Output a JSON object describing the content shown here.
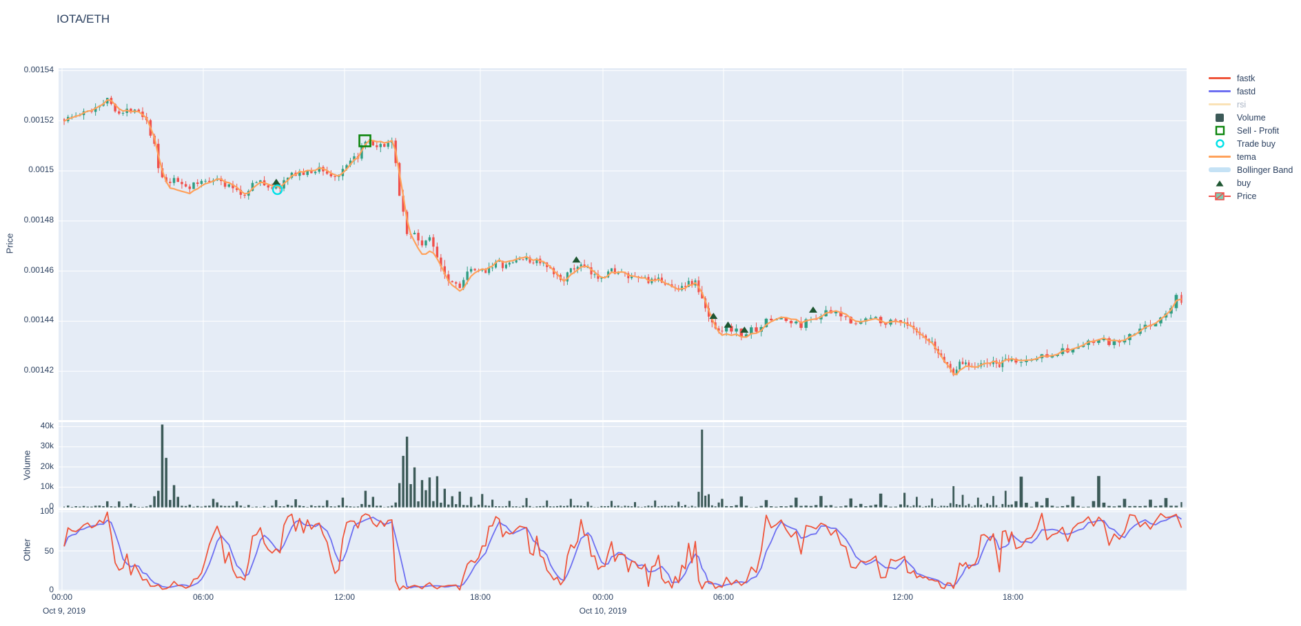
{
  "title": "IOTA/ETH",
  "colors": {
    "text": "#2a3f5f",
    "plot_bg": "#E5ECF6",
    "grid": "#ffffff",
    "fastk": "#EF553B",
    "fastd": "#6D6FF1",
    "rsi": "#FAE2B6",
    "tema": "#FFA15A",
    "bollinger": "#C5E2F5",
    "candle_up": "#2F9E83",
    "candle_down": "#F0504B",
    "volume_bar": "#3C5A58",
    "buy_marker": "#1E5631",
    "sell_profit": "#0C850C",
    "trade_buy": "#00E1E8"
  },
  "legend": {
    "items": [
      {
        "label": "fastk",
        "type": "line",
        "color": "#EF553B",
        "dimmed": false
      },
      {
        "label": "fastd",
        "type": "line",
        "color": "#6D6FF1",
        "dimmed": false
      },
      {
        "label": "rsi",
        "type": "line",
        "color": "#FAE2B6",
        "dimmed": true
      },
      {
        "label": "Volume",
        "type": "square-filled",
        "color": "#3C5A58",
        "dimmed": false
      },
      {
        "label": "Sell - Profit",
        "type": "square-open",
        "color": "#0C850C",
        "dimmed": false
      },
      {
        "label": "Trade buy",
        "type": "circle-open",
        "color": "#00E1E8",
        "dimmed": false
      },
      {
        "label": "tema",
        "type": "line",
        "color": "#FFA15A",
        "dimmed": false
      },
      {
        "label": "Bollinger Band",
        "type": "band",
        "color": "#C5E2F5",
        "dimmed": false
      },
      {
        "label": "buy",
        "type": "triangle",
        "color": "#1E5631",
        "dimmed": false
      },
      {
        "label": "Price",
        "type": "candle",
        "color": "#2F9E83",
        "dimmed": false
      }
    ]
  },
  "axes": {
    "price": {
      "title": "Price",
      "ticks": [
        "0.00154",
        "0.00152",
        "0.0015",
        "0.00148",
        "0.00146",
        "0.00144",
        "0.00142"
      ]
    },
    "volume": {
      "title": "Volume",
      "ticks": [
        "40k",
        "30k",
        "20k",
        "10k",
        "0"
      ]
    },
    "other": {
      "title": "Other",
      "ticks": [
        "100",
        "50",
        "0"
      ]
    },
    "x": {
      "ticks": [
        "00:00",
        "06:00",
        "12:00",
        "18:00",
        "00:00",
        "06:00",
        "12:00",
        "18:00"
      ],
      "date_labels": [
        "Oct 9, 2019",
        "Oct 10, 2019"
      ]
    }
  },
  "chart_data": {
    "type": "candlestick+indicators",
    "pair": "IOTA/ETH",
    "x_unit": "hours_since_2019-10-09T00:00",
    "x_tick_hours": [
      0,
      6,
      12,
      18,
      24,
      30,
      36,
      42
    ],
    "ylim_price": [
      0.0014005,
      0.001541
    ],
    "ylim_volume": [
      0,
      42700
    ],
    "ylim_other": [
      0,
      100
    ],
    "candle_period_hours": 0.1667,
    "price_anchors": [
      [
        0,
        0.0015205
      ],
      [
        0.4,
        0.0015215
      ],
      [
        0.8,
        0.0015225
      ],
      [
        1.2,
        0.001524
      ],
      [
        1.6,
        0.001527
      ],
      [
        1.9,
        0.0015285
      ],
      [
        2.2,
        0.001526
      ],
      [
        2.5,
        0.0015225
      ],
      [
        2.8,
        0.001524
      ],
      [
        3.1,
        0.0015255
      ],
      [
        3.4,
        0.001523
      ],
      [
        3.7,
        0.0015185
      ],
      [
        3.95,
        0.001508
      ],
      [
        4.15,
        0.001498
      ],
      [
        4.4,
        0.0014945
      ],
      [
        4.7,
        0.001496
      ],
      [
        5.0,
        0.0014955
      ],
      [
        5.4,
        0.0014935
      ],
      [
        5.8,
        0.001495
      ],
      [
        6.2,
        0.0014965
      ],
      [
        6.5,
        0.0014975
      ],
      [
        6.8,
        0.001495
      ],
      [
        7.1,
        0.0014935
      ],
      [
        7.4,
        0.001493
      ],
      [
        7.7,
        0.0014895
      ],
      [
        8.0,
        0.0014945
      ],
      [
        8.4,
        0.0014955
      ],
      [
        8.8,
        0.001494
      ],
      [
        9.1,
        0.0014925
      ],
      [
        9.4,
        0.0014955
      ],
      [
        9.7,
        0.0014975
      ],
      [
        10.0,
        0.0015
      ],
      [
        10.3,
        0.0014985
      ],
      [
        10.6,
        0.0014995
      ],
      [
        11.0,
        0.0015015
      ],
      [
        11.3,
        0.0014985
      ],
      [
        11.6,
        0.0014975
      ],
      [
        11.9,
        0.001499
      ],
      [
        12.2,
        0.0015025
      ],
      [
        12.5,
        0.001505
      ],
      [
        12.8,
        0.0015095
      ],
      [
        13.1,
        0.0015115
      ],
      [
        13.35,
        0.001508
      ],
      [
        13.6,
        0.0015095
      ],
      [
        13.9,
        0.0015115
      ],
      [
        14.1,
        0.00151
      ],
      [
        14.3,
        0.0015
      ],
      [
        14.5,
        0.001488
      ],
      [
        14.7,
        0.001478
      ],
      [
        14.85,
        0.001472
      ],
      [
        15.0,
        0.0014765
      ],
      [
        15.2,
        0.001473
      ],
      [
        15.45,
        0.0014705
      ],
      [
        15.7,
        0.0014735
      ],
      [
        15.95,
        0.001469
      ],
      [
        16.2,
        0.0014645
      ],
      [
        16.5,
        0.001458
      ],
      [
        16.8,
        0.0014555
      ],
      [
        17.1,
        0.0014545
      ],
      [
        17.4,
        0.0014585
      ],
      [
        17.7,
        0.0014605
      ],
      [
        18.0,
        0.001459
      ],
      [
        18.4,
        0.0014615
      ],
      [
        18.8,
        0.0014635
      ],
      [
        19.2,
        0.0014615
      ],
      [
        19.6,
        0.0014635
      ],
      [
        20.0,
        0.0014655
      ],
      [
        20.4,
        0.0014635
      ],
      [
        20.8,
        0.0014645
      ],
      [
        21.2,
        0.0014615
      ],
      [
        21.6,
        0.0014585
      ],
      [
        22.0,
        0.0014565
      ],
      [
        22.4,
        0.0014595
      ],
      [
        22.8,
        0.0014625
      ],
      [
        23.2,
        0.0014605
      ],
      [
        23.6,
        0.0014575
      ],
      [
        24.0,
        0.0014585
      ],
      [
        24.5,
        0.0014605
      ],
      [
        25.0,
        0.0014585
      ],
      [
        25.5,
        0.0014565
      ],
      [
        26.0,
        0.0014575
      ],
      [
        26.5,
        0.0014555
      ],
      [
        27.0,
        0.0014565
      ],
      [
        27.5,
        0.0014525
      ],
      [
        28.0,
        0.0014545
      ],
      [
        28.6,
        0.0014555
      ],
      [
        29.0,
        0.0014465
      ],
      [
        29.25,
        0.0014415
      ],
      [
        29.55,
        0.0014385
      ],
      [
        29.85,
        0.0014365
      ],
      [
        30.2,
        0.0014375
      ],
      [
        30.6,
        0.0014345
      ],
      [
        31.0,
        0.0014365
      ],
      [
        31.4,
        0.0014395
      ],
      [
        31.8,
        0.0014415
      ],
      [
        32.2,
        0.0014395
      ],
      [
        32.6,
        0.0014385
      ],
      [
        33.0,
        0.0014415
      ],
      [
        33.5,
        0.0014435
      ],
      [
        34.0,
        0.0014415
      ],
      [
        34.5,
        0.0014395
      ],
      [
        35.0,
        0.0014415
      ],
      [
        35.5,
        0.0014395
      ],
      [
        36.0,
        0.0014405
      ],
      [
        36.4,
        0.0014375
      ],
      [
        36.8,
        0.0014345
      ],
      [
        37.2,
        0.0014325
      ],
      [
        37.6,
        0.0014305
      ],
      [
        38.0,
        0.0014265
      ],
      [
        38.4,
        0.0014235
      ],
      [
        38.7,
        0.0014185
      ],
      [
        39.0,
        0.0014225
      ],
      [
        39.4,
        0.0014235
      ],
      [
        39.8,
        0.0014225
      ],
      [
        40.3,
        0.0014225
      ],
      [
        40.8,
        0.0014235
      ],
      [
        41.3,
        0.0014225
      ],
      [
        41.8,
        0.0014245
      ],
      [
        42.3,
        0.0014235
      ],
      [
        42.8,
        0.0014255
      ],
      [
        43.3,
        0.0014275
      ],
      [
        43.8,
        0.0014285
      ],
      [
        44.3,
        0.0014305
      ],
      [
        44.8,
        0.0014325
      ],
      [
        45.2,
        0.0014305
      ],
      [
        45.6,
        0.0014325
      ],
      [
        46.0,
        0.0014355
      ],
      [
        46.4,
        0.0014385
      ],
      [
        46.8,
        0.0014415
      ],
      [
        47.1,
        0.0014445
      ],
      [
        47.3,
        0.0014515
      ],
      [
        47.45,
        0.0014465
      ]
    ],
    "volume_spikes": [
      [
        2.0,
        3000
      ],
      [
        3.9,
        5500
      ],
      [
        4.2,
        41000
      ],
      [
        4.45,
        24500
      ],
      [
        4.7,
        11000
      ],
      [
        5.0,
        5200
      ],
      [
        6.5,
        4200
      ],
      [
        7.5,
        3000
      ],
      [
        9.1,
        3600
      ],
      [
        10.0,
        4000
      ],
      [
        11.2,
        3500
      ],
      [
        12.0,
        4800
      ],
      [
        12.9,
        8200
      ],
      [
        13.2,
        5200
      ],
      [
        14.35,
        12000
      ],
      [
        14.55,
        25500
      ],
      [
        14.75,
        35000
      ],
      [
        14.95,
        11500
      ],
      [
        15.15,
        19800
      ],
      [
        15.35,
        13500
      ],
      [
        15.6,
        8500
      ],
      [
        15.8,
        14800
      ],
      [
        16.1,
        15400
      ],
      [
        16.4,
        9200
      ],
      [
        16.7,
        5500
      ],
      [
        17.1,
        7800
      ],
      [
        17.6,
        5200
      ],
      [
        18.1,
        6600
      ],
      [
        18.6,
        3800
      ],
      [
        19.4,
        3200
      ],
      [
        20.3,
        4600
      ],
      [
        21.2,
        3400
      ],
      [
        22.4,
        4200
      ],
      [
        23.3,
        2800
      ],
      [
        24.5,
        3200
      ],
      [
        25.6,
        2600
      ],
      [
        26.6,
        3400
      ],
      [
        27.7,
        2800
      ],
      [
        29.0,
        38500
      ],
      [
        29.3,
        6500
      ],
      [
        30.0,
        4200
      ],
      [
        30.6,
        5400
      ],
      [
        31.5,
        3600
      ],
      [
        32.4,
        4800
      ],
      [
        33.3,
        5600
      ],
      [
        34.2,
        4400
      ],
      [
        35.2,
        6800
      ],
      [
        36.1,
        7200
      ],
      [
        36.8,
        5200
      ],
      [
        37.6,
        4400
      ],
      [
        38.7,
        10500
      ],
      [
        39.2,
        6200
      ],
      [
        40.1,
        4800
      ],
      [
        40.9,
        5600
      ],
      [
        41.6,
        8200
      ],
      [
        42.3,
        15200
      ],
      [
        43.1,
        4600
      ],
      [
        43.9,
        5400
      ],
      [
        44.8,
        15500
      ],
      [
        45.6,
        4200
      ],
      [
        46.4,
        3800
      ],
      [
        47.0,
        4600
      ],
      [
        47.4,
        2600
      ]
    ],
    "markers": {
      "trade_buy": [
        [
          9.15,
          0.0014925
        ]
      ],
      "sell_profit": [
        [
          12.9,
          0.001512
        ]
      ],
      "buy": [
        [
          9.1,
          0.0014955
        ],
        [
          22.7,
          0.0014645
        ],
        [
          29.5,
          0.001442
        ],
        [
          30.15,
          0.0014385
        ],
        [
          30.7,
          0.0014365
        ],
        [
          33.0,
          0.0014445
        ]
      ]
    },
    "indicators": {
      "tema_period": 9,
      "bollinger_window": 24,
      "bollinger_k": 2.2,
      "stoch_window": 12,
      "fastd_smoothing": 4,
      "rsi_visible": false
    }
  }
}
